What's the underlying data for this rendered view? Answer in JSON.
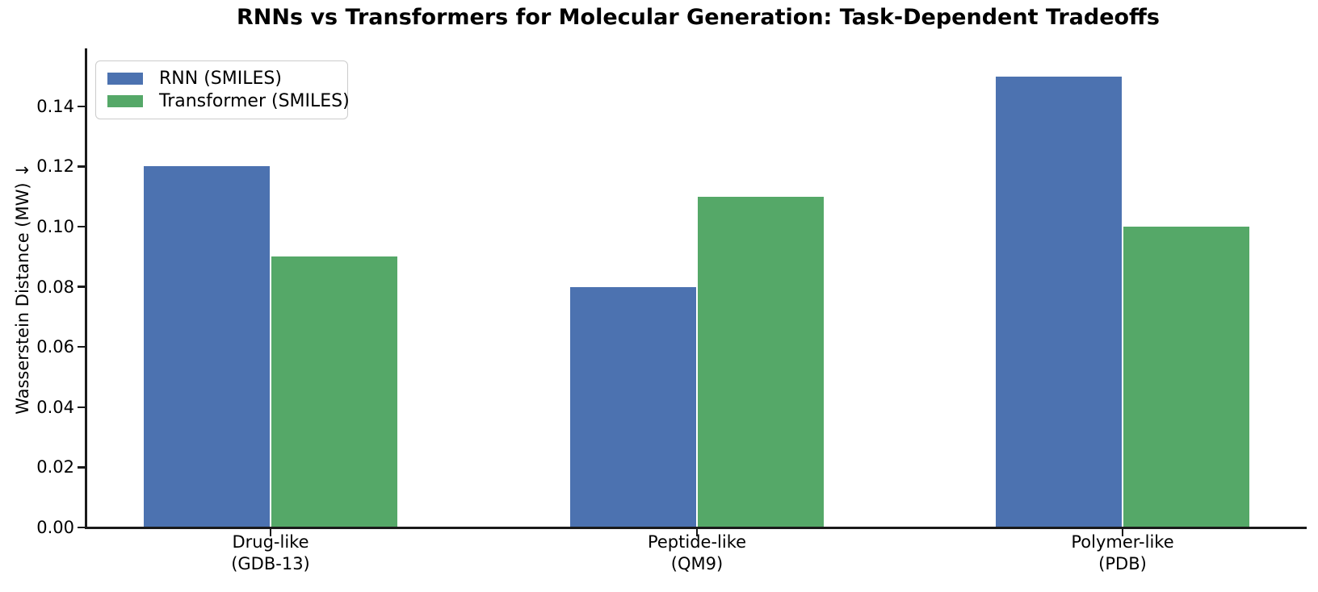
{
  "chart_data": {
    "type": "bar",
    "title": "RNNs vs Transformers for Molecular Generation: Task-Dependent Tradeoffs",
    "ylabel": "Wasserstein Distance (MW) ↓",
    "xlabel": "",
    "categories": [
      "Drug-like",
      "Peptide-like",
      "Polymer-like"
    ],
    "category_sublabels": [
      "(GDB-13)",
      "(QM9)",
      "(PDB)"
    ],
    "series": [
      {
        "name": "RNN (SMILES)",
        "color": "#4C72B0",
        "values": [
          0.12,
          0.08,
          0.15
        ]
      },
      {
        "name": "Transformer (SMILES)",
        "color": "#55A868",
        "values": [
          0.09,
          0.11,
          0.1
        ]
      }
    ],
    "yticks": [
      0.0,
      0.02,
      0.04,
      0.06,
      0.08,
      0.1,
      0.12,
      0.14
    ],
    "ytick_labels": [
      "0.00",
      "0.02",
      "0.04",
      "0.06",
      "0.08",
      "0.10",
      "0.12",
      "0.14"
    ],
    "ylim": [
      0,
      0.159
    ],
    "grid": false,
    "legend_position": "upper left"
  }
}
